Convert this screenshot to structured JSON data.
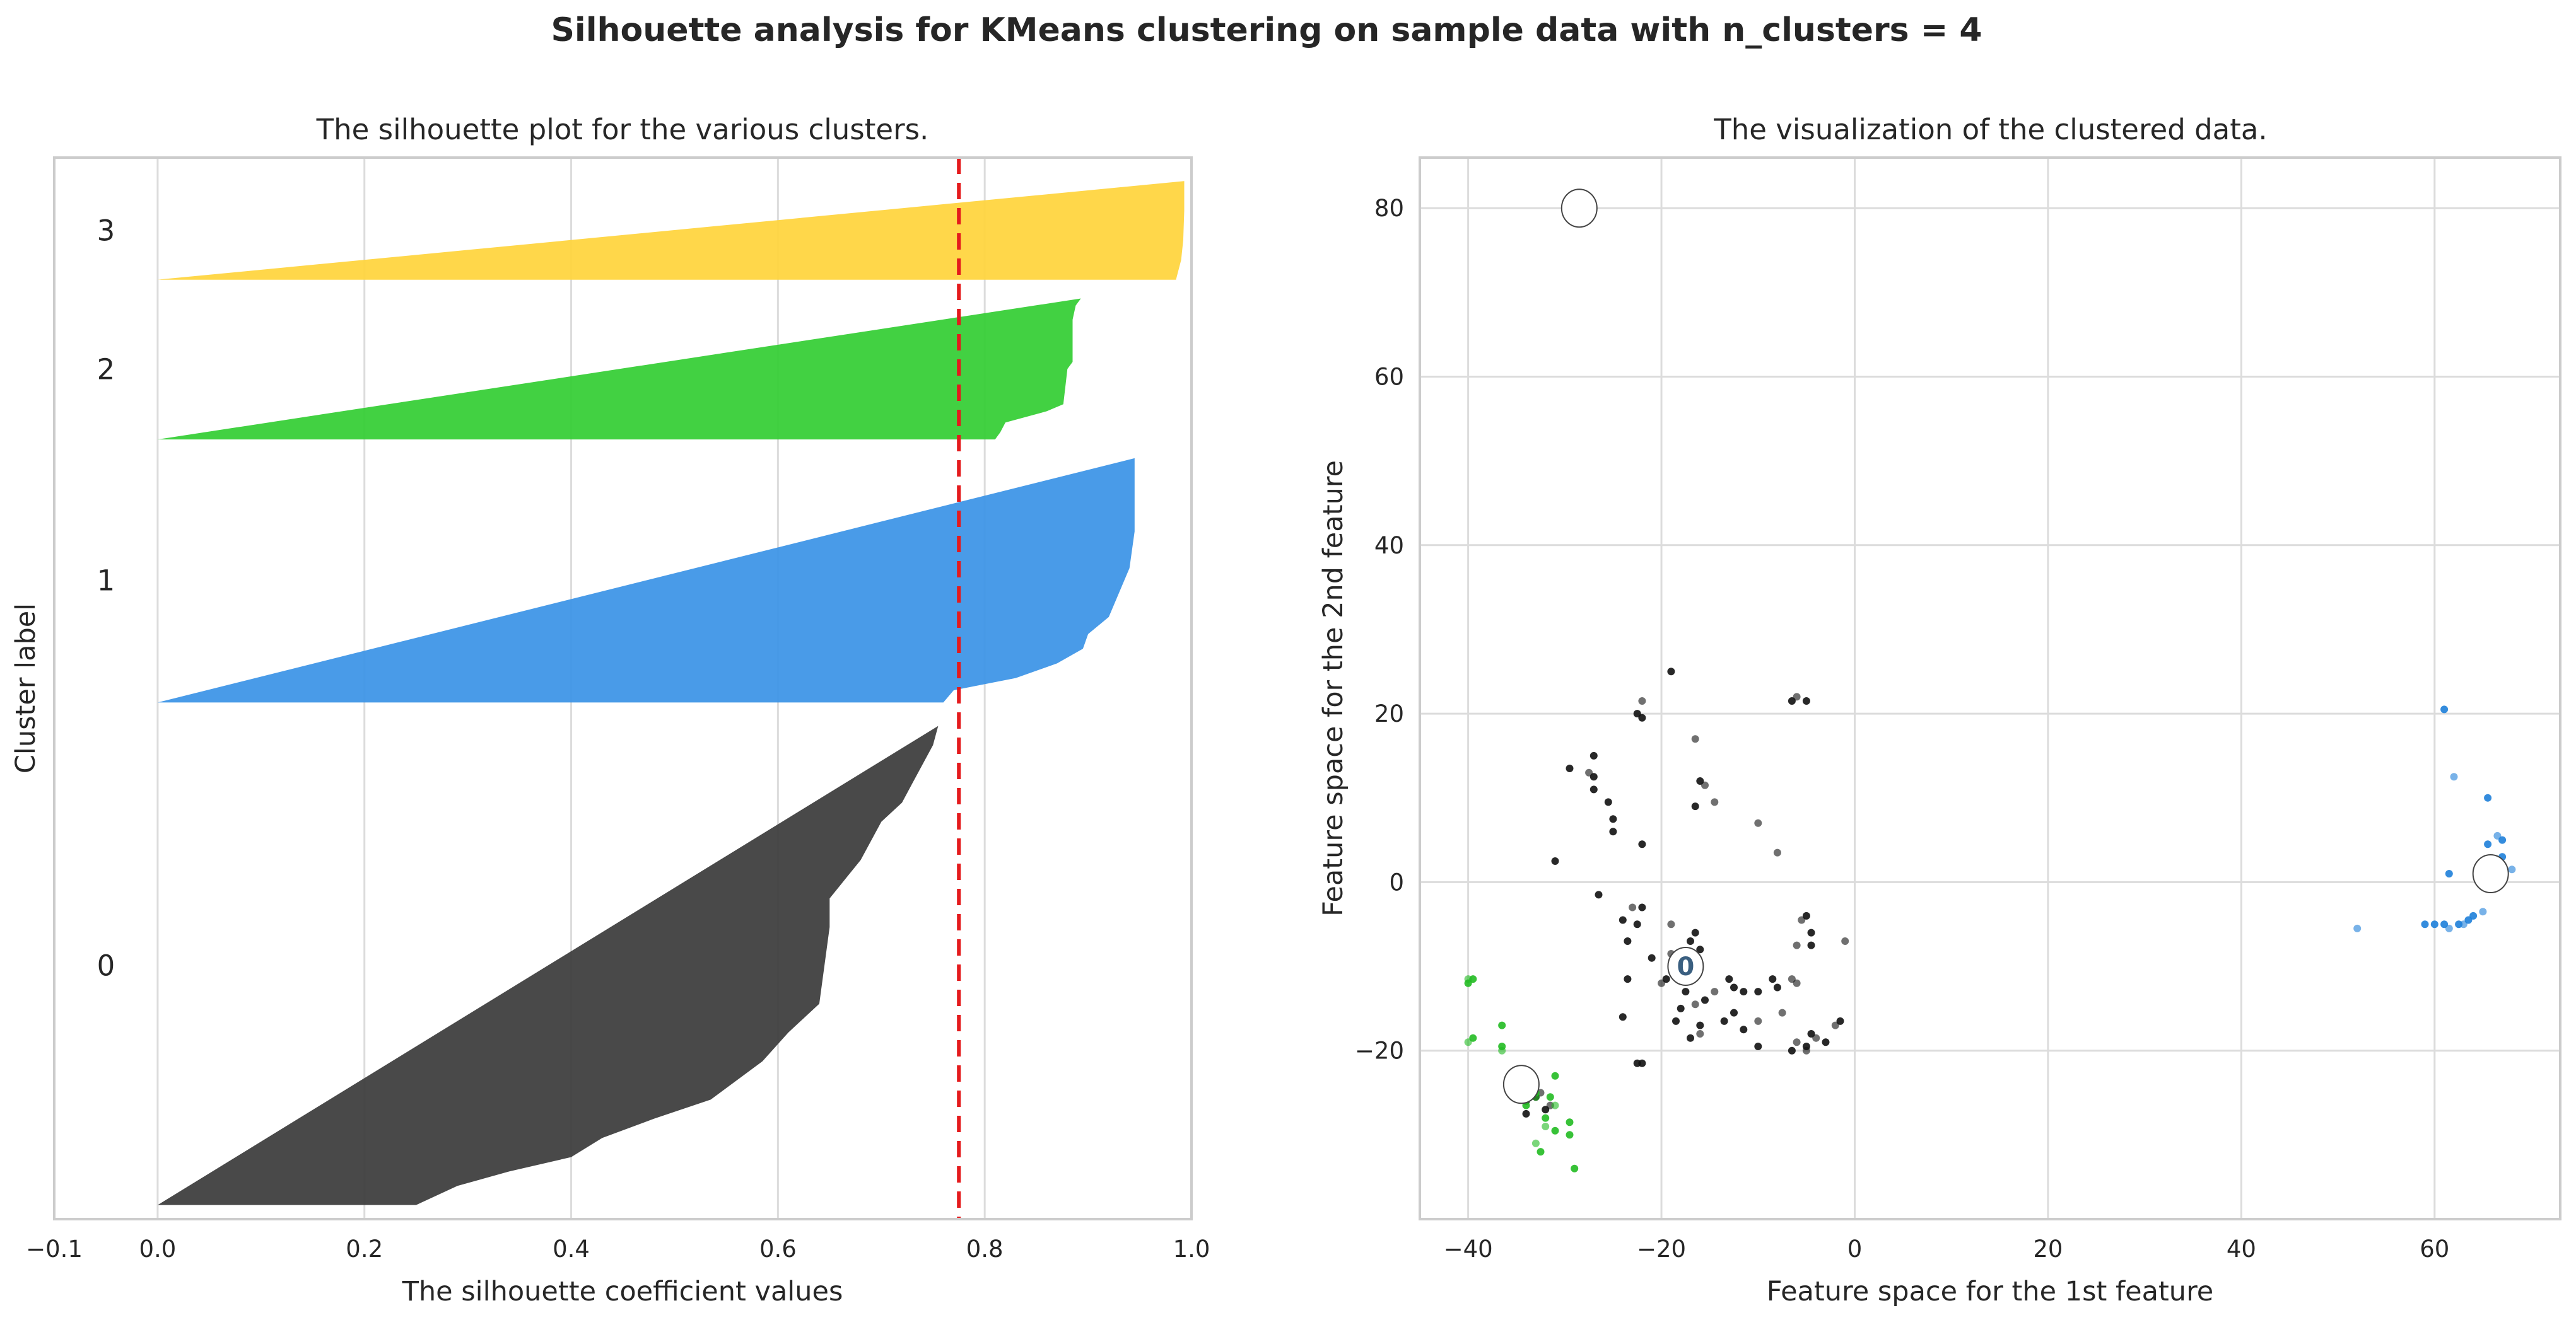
{
  "chart_data": [
    {
      "type": "silhouette",
      "suptitle": "Silhouette analysis for KMeans clustering on sample data with n_clusters = 4",
      "title": "The silhouette plot for the various clusters.",
      "xlabel": "The silhouette coefficient values",
      "ylabel": "Cluster label",
      "xlim": [
        -0.1,
        1.0
      ],
      "ylim": [
        0,
        113
      ],
      "xticks": [
        -0.1,
        0.0,
        0.2,
        0.4,
        0.6,
        0.8,
        1.0
      ],
      "xtick_labels": [
        "−0.1",
        "0.0",
        "0.2",
        "0.4",
        "0.6",
        "0.8",
        "1.0"
      ],
      "silhouette_avg": 0.775,
      "avg_line_color": "#e41a1c",
      "clusters": [
        {
          "label": "0",
          "color": "#3a3a3a",
          "profile": [
            [
              0,
              0.755
            ],
            [
              0.04,
              0.75
            ],
            [
              0.08,
              0.74
            ],
            [
              0.12,
              0.73
            ],
            [
              0.16,
              0.72
            ],
            [
              0.2,
              0.7
            ],
            [
              0.24,
              0.69
            ],
            [
              0.28,
              0.68
            ],
            [
              0.32,
              0.665
            ],
            [
              0.36,
              0.65
            ],
            [
              0.42,
              0.65
            ],
            [
              0.5,
              0.645
            ],
            [
              0.58,
              0.64
            ],
            [
              0.64,
              0.61
            ],
            [
              0.7,
              0.585
            ],
            [
              0.74,
              0.56
            ],
            [
              0.78,
              0.535
            ],
            [
              0.82,
              0.48
            ],
            [
              0.86,
              0.43
            ],
            [
              0.9,
              0.4
            ],
            [
              0.93,
              0.34
            ],
            [
              0.96,
              0.29
            ],
            [
              1.0,
              0.25
            ]
          ],
          "y_range": [
            1.5,
            52.5
          ]
        },
        {
          "label": "1",
          "color": "#3a92e6",
          "profile": [
            [
              0,
              0.945
            ],
            [
              0.3,
              0.945
            ],
            [
              0.45,
              0.94
            ],
            [
              0.55,
              0.93
            ],
            [
              0.65,
              0.92
            ],
            [
              0.72,
              0.9
            ],
            [
              0.78,
              0.895
            ],
            [
              0.84,
              0.87
            ],
            [
              0.9,
              0.83
            ],
            [
              0.95,
              0.77
            ],
            [
              1.0,
              0.76
            ]
          ],
          "y_range": [
            55,
            81
          ]
        },
        {
          "label": "2",
          "color": "#32cd32",
          "profile": [
            [
              0,
              0.893
            ],
            [
              0.05,
              0.888
            ],
            [
              0.15,
              0.885
            ],
            [
              0.45,
              0.885
            ],
            [
              0.5,
              0.88
            ],
            [
              0.75,
              0.876
            ],
            [
              0.8,
              0.86
            ],
            [
              0.88,
              0.82
            ],
            [
              0.95,
              0.815
            ],
            [
              1.0,
              0.81
            ]
          ],
          "y_range": [
            83,
            98
          ]
        },
        {
          "label": "3",
          "color": "#ffd43b",
          "profile": [
            [
              0,
              0.993
            ],
            [
              0.3,
              0.993
            ],
            [
              0.6,
              0.992
            ],
            [
              0.8,
              0.99
            ],
            [
              1.0,
              0.985
            ]
          ],
          "y_range": [
            100,
            110.5
          ]
        }
      ]
    },
    {
      "type": "scatter",
      "title": "The visualization of the clustered data.",
      "xlabel": "Feature space for the 1st feature",
      "ylabel": "Feature space for the 2nd feature",
      "xlim": [
        -45,
        73
      ],
      "ylim": [
        -40,
        86
      ],
      "xticks": [
        -40,
        -20,
        0,
        20,
        40,
        60
      ],
      "xtick_labels": [
        "−40",
        "−20",
        "0",
        "20",
        "40",
        "60"
      ],
      "yticks": [
        -20,
        0,
        20,
        40,
        60,
        80
      ],
      "ytick_labels": [
        "−20",
        "0",
        "20",
        "40",
        "60",
        "80"
      ],
      "series": [
        {
          "name": "cluster-0",
          "color": "#111111",
          "points": [
            [
              -19,
              25
            ],
            [
              -6,
              22
            ],
            [
              -5,
              21.5
            ],
            [
              -6.5,
              21.5
            ],
            [
              -22,
              21.5
            ],
            [
              -22.5,
              20
            ],
            [
              -22,
              19.5
            ],
            [
              -16.5,
              17
            ],
            [
              -27,
              15
            ],
            [
              -29.5,
              13.5
            ],
            [
              -27.5,
              13
            ],
            [
              -27,
              12.5
            ],
            [
              -16,
              12
            ],
            [
              -15.5,
              11.5
            ],
            [
              -27,
              11
            ],
            [
              -25.5,
              9.5
            ],
            [
              -14.5,
              9.5
            ],
            [
              -16.5,
              9
            ],
            [
              -25,
              7.5
            ],
            [
              -10,
              7
            ],
            [
              -25,
              6
            ],
            [
              -22,
              4.5
            ],
            [
              -8,
              3.5
            ],
            [
              -31,
              2.5
            ],
            [
              -26.5,
              -1.5
            ],
            [
              -23,
              -3
            ],
            [
              -22,
              -3
            ],
            [
              -5,
              -4
            ],
            [
              -5.5,
              -4.5
            ],
            [
              -22.5,
              -5
            ],
            [
              -24,
              -4.5
            ],
            [
              -19,
              -5
            ],
            [
              -4.5,
              -6
            ],
            [
              -16.5,
              -6
            ],
            [
              -1,
              -7
            ],
            [
              -23.5,
              -7
            ],
            [
              -17,
              -7
            ],
            [
              -6,
              -7.5
            ],
            [
              -4.5,
              -7.5
            ],
            [
              -16,
              -8
            ],
            [
              -19,
              -8.5
            ],
            [
              -21,
              -9
            ],
            [
              -16.5,
              -9.5
            ],
            [
              -18,
              -10
            ],
            [
              -19.5,
              -11.5
            ],
            [
              -8.5,
              -11.5
            ],
            [
              -6.5,
              -11.5
            ],
            [
              -13,
              -11.5
            ],
            [
              -8,
              -12.5
            ],
            [
              -20,
              -12
            ],
            [
              -23.5,
              -11.5
            ],
            [
              -12.5,
              -12.5
            ],
            [
              -6,
              -12
            ],
            [
              -11.5,
              -13
            ],
            [
              -17.5,
              -13
            ],
            [
              -14.5,
              -13
            ],
            [
              -10,
              -13
            ],
            [
              -15.5,
              -14
            ],
            [
              -16.5,
              -14.5
            ],
            [
              -18,
              -15
            ],
            [
              -12.5,
              -15.5
            ],
            [
              -7.5,
              -15.5
            ],
            [
              -24,
              -16
            ],
            [
              -18.5,
              -16.5
            ],
            [
              -10,
              -16.5
            ],
            [
              -13.5,
              -16.5
            ],
            [
              -1.5,
              -16.5
            ],
            [
              -2,
              -17
            ],
            [
              -16,
              -17
            ],
            [
              -11.5,
              -17.5
            ],
            [
              -16,
              -18
            ],
            [
              -4.5,
              -18
            ],
            [
              -17,
              -18.5
            ],
            [
              -4,
              -18.5
            ],
            [
              -3,
              -19
            ],
            [
              -5,
              -19.5
            ],
            [
              -6,
              -19
            ],
            [
              -10,
              -19.5
            ],
            [
              -6.5,
              -20
            ],
            [
              -5,
              -20
            ],
            [
              -22,
              -21.5
            ],
            [
              -22.5,
              -21.5
            ],
            [
              -32.5,
              -25
            ],
            [
              -33,
              -25.5
            ],
            [
              -34,
              -26
            ],
            [
              -31.5,
              -26.5
            ],
            [
              -32,
              -27
            ],
            [
              -34,
              -27.5
            ]
          ]
        },
        {
          "name": "cluster-1",
          "color": "#1e7fd9",
          "points": [
            [
              61,
              20.5
            ],
            [
              62,
              12.5
            ],
            [
              65.5,
              10
            ],
            [
              65.5,
              4.5
            ],
            [
              66.5,
              5.5
            ],
            [
              67,
              5
            ],
            [
              67,
              3
            ],
            [
              68,
              1.5
            ],
            [
              67,
              2
            ],
            [
              61.5,
              1
            ],
            [
              65,
              -3.5
            ],
            [
              64,
              -4
            ],
            [
              63.5,
              -4.5
            ],
            [
              63,
              -5
            ],
            [
              62.5,
              -5
            ],
            [
              61,
              -5
            ],
            [
              61.5,
              -5.5
            ],
            [
              60,
              -5
            ],
            [
              59,
              -5
            ],
            [
              52,
              -5.5
            ]
          ]
        },
        {
          "name": "cluster-2",
          "color": "#22bb22",
          "points": [
            [
              -39.5,
              -11.5
            ],
            [
              -40,
              -11.5
            ],
            [
              -40,
              -12
            ],
            [
              -39.5,
              -18.5
            ],
            [
              -40,
              -19
            ],
            [
              -36.5,
              -17
            ],
            [
              -36.5,
              -19.5
            ],
            [
              -36.5,
              -20
            ],
            [
              -31,
              -23
            ],
            [
              -33,
              -25
            ],
            [
              -33,
              -25.5
            ],
            [
              -31.5,
              -25.5
            ],
            [
              -34,
              -26.5
            ],
            [
              -31,
              -26.5
            ],
            [
              -32,
              -28
            ],
            [
              -29.5,
              -28.5
            ],
            [
              -32,
              -29
            ],
            [
              -31,
              -29.5
            ],
            [
              -29.5,
              -30
            ],
            [
              -33,
              -31
            ],
            [
              -32.5,
              -32
            ],
            [
              -29,
              -34
            ]
          ]
        }
      ],
      "centers": [
        {
          "label": "",
          "x": -28.5,
          "y": 80
        },
        {
          "label": "0",
          "x": -17.5,
          "y": -10
        },
        {
          "label": "",
          "x": 65.8,
          "y": 1
        },
        {
          "label": "",
          "x": -34.5,
          "y": -24
        }
      ]
    }
  ]
}
